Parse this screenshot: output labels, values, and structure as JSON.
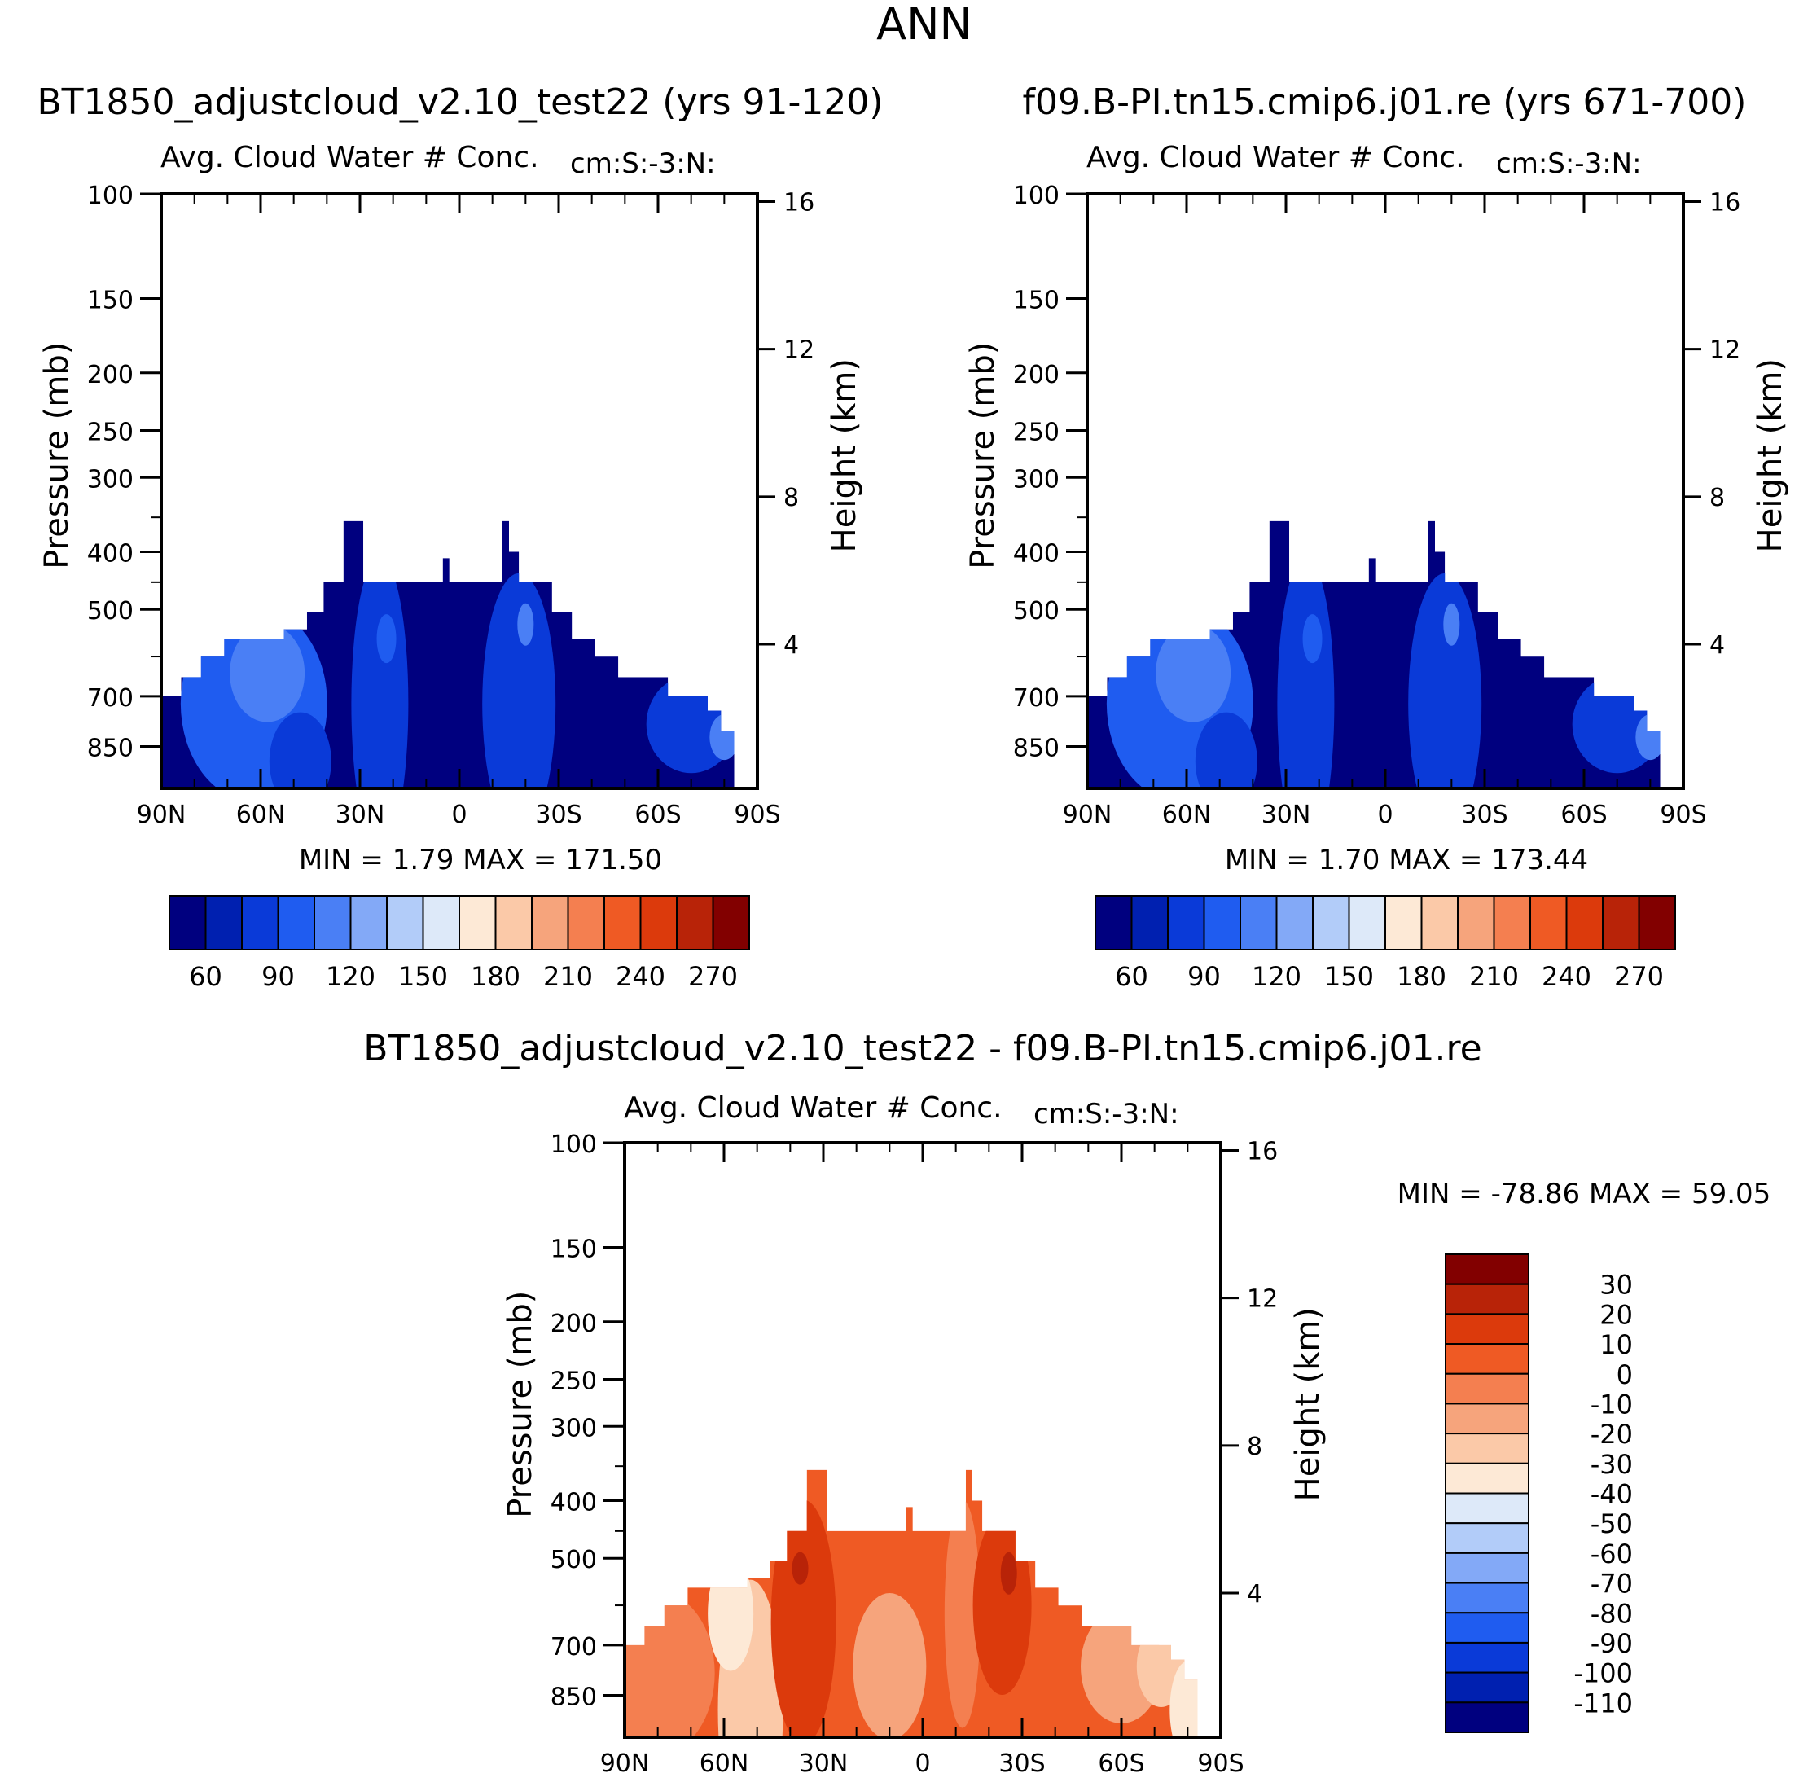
{
  "page_title": "ANN",
  "chart_data": [
    {
      "type": "contour",
      "id": "case1",
      "case_title": "BT1850_adjustcloud_v2.10_test22 (yrs 91-120)",
      "subtitle_left": "Avg. Cloud Water # Conc.",
      "subtitle_right": "cm:S:-3:N:",
      "xlabel": "",
      "ylabel": "Pressure (mb)",
      "y2label": "Height (km)",
      "x_ticks": [
        "90N",
        "60N",
        "30N",
        "0",
        "30S",
        "60S",
        "90S"
      ],
      "y_ticks": [
        "100",
        "150",
        "200",
        "250",
        "300",
        "400",
        "500",
        "700",
        "850"
      ],
      "y2_ticks": [
        "16",
        "12",
        "8",
        "4"
      ],
      "stats_text": "MIN =    1.79   MAX =  171.50",
      "min": 1.79,
      "max": 171.5,
      "colorbar": {
        "orientation": "horizontal",
        "levels": [
          50,
          60,
          70,
          80,
          90,
          100,
          110,
          120,
          130,
          140,
          150,
          160,
          170,
          180,
          190,
          200,
          210,
          220,
          230,
          240,
          250,
          260,
          270
        ],
        "labels": [
          "60",
          "90",
          "120",
          "150",
          "180",
          "210",
          "240",
          "270"
        ],
        "colors": [
          "#00007f",
          "#0020b0",
          "#0a3ad8",
          "#1f5cf0",
          "#4a7ff5",
          "#83a9f7",
          "#b2ccf9",
          "#dde9f9",
          "#fde9d6",
          "#fbc9a8",
          "#f6a47c",
          "#f47f50",
          "#ef5a24",
          "#dc3a0c",
          "#b82308",
          "#820000"
        ]
      },
      "region_shades": [
        "deep blue",
        "mid blue",
        "light blue"
      ]
    },
    {
      "type": "contour",
      "id": "case2",
      "case_title": "f09.B-PI.tn15.cmip6.j01.re (yrs 671-700)",
      "subtitle_left": "Avg. Cloud Water # Conc.",
      "subtitle_right": "cm:S:-3:N:",
      "xlabel": "",
      "ylabel": "Pressure (mb)",
      "y2label": "Height (km)",
      "x_ticks": [
        "90N",
        "60N",
        "30N",
        "0",
        "30S",
        "60S",
        "90S"
      ],
      "y_ticks": [
        "100",
        "150",
        "200",
        "250",
        "300",
        "400",
        "500",
        "700",
        "850"
      ],
      "y2_ticks": [
        "16",
        "12",
        "8",
        "4"
      ],
      "stats_text": "MIN =    1.70   MAX =  173.44",
      "min": 1.7,
      "max": 173.44,
      "colorbar": {
        "orientation": "horizontal",
        "levels": [
          50,
          60,
          70,
          80,
          90,
          100,
          110,
          120,
          130,
          140,
          150,
          160,
          170,
          180,
          190,
          200,
          210,
          220,
          230,
          240,
          250,
          260,
          270
        ],
        "labels": [
          "60",
          "90",
          "120",
          "150",
          "180",
          "210",
          "240",
          "270"
        ],
        "colors": [
          "#00007f",
          "#0020b0",
          "#0a3ad8",
          "#1f5cf0",
          "#4a7ff5",
          "#83a9f7",
          "#b2ccf9",
          "#dde9f9",
          "#fde9d6",
          "#fbc9a8",
          "#f6a47c",
          "#f47f50",
          "#ef5a24",
          "#dc3a0c",
          "#b82308",
          "#820000"
        ]
      },
      "region_shades": [
        "deep blue",
        "mid blue",
        "light blue"
      ]
    },
    {
      "type": "contour",
      "id": "diff",
      "case_title": "BT1850_adjustcloud_v2.10_test22 - f09.B-PI.tn15.cmip6.j01.re",
      "subtitle_left": "Avg. Cloud Water # Conc.",
      "subtitle_right": "cm:S:-3:N:",
      "xlabel": "",
      "ylabel": "Pressure (mb)",
      "y2label": "Height (km)",
      "x_ticks": [
        "90N",
        "60N",
        "30N",
        "0",
        "30S",
        "60S",
        "90S"
      ],
      "y_ticks": [
        "100",
        "150",
        "200",
        "250",
        "300",
        "400",
        "500",
        "700",
        "850"
      ],
      "y2_ticks": [
        "16",
        "12",
        "8",
        "4"
      ],
      "stats_text": "MIN = -78.86   MAX =   59.05",
      "min": -78.86,
      "max": 59.05,
      "colorbar": {
        "orientation": "vertical",
        "labels": [
          "30",
          "20",
          "10",
          "0",
          "-10",
          "-20",
          "-30",
          "-40",
          "-50",
          "-60",
          "-70",
          "-80",
          "-90",
          "-100",
          "-110"
        ],
        "colors": [
          "#820000",
          "#b82308",
          "#dc3a0c",
          "#ef5a24",
          "#f47f50",
          "#f6a47c",
          "#fbc9a8",
          "#fde9d6",
          "#dde9f9",
          "#b2ccf9",
          "#83a9f7",
          "#4a7ff5",
          "#1f5cf0",
          "#0a3ad8",
          "#0020b0",
          "#00007f"
        ]
      },
      "region_shades": [
        "orange-red",
        "dark red",
        "light salmon"
      ]
    }
  ]
}
